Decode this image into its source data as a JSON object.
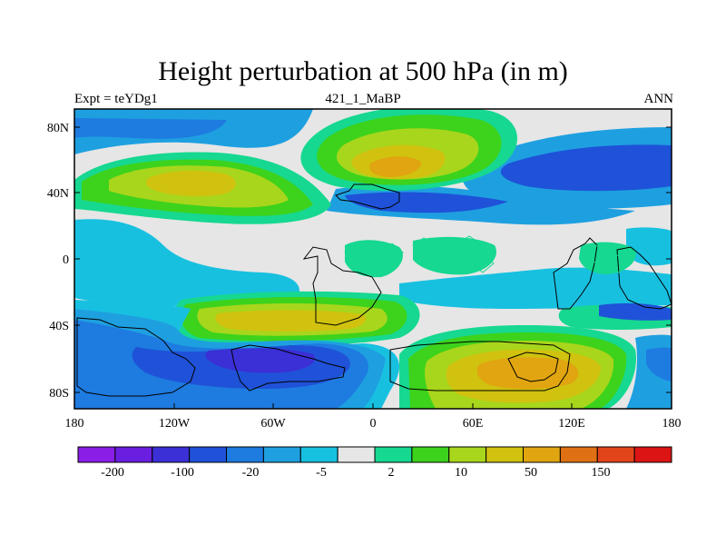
{
  "title": "Height perturbation at 500 hPa (in m)",
  "left_string": "Expt = teYDg1",
  "center_string": "421_1_MaBP",
  "right_string": "ANN",
  "chart_data": {
    "type": "heatmap",
    "subtype": "filled contour map",
    "variable": "500 hPa geopotential height perturbation",
    "units": "m",
    "lat_range": [
      -90,
      90
    ],
    "lon_range": [
      -180,
      180
    ],
    "y_ticks": [
      "80N",
      "40N",
      "0",
      "40S",
      "80S"
    ],
    "x_ticks": [
      "180",
      "120W",
      "60W",
      "0",
      "60E",
      "120E",
      "180"
    ],
    "colorbar": {
      "labels": [
        "-200",
        "-100",
        "-20",
        "-5",
        "2",
        "10",
        "50",
        "150"
      ],
      "colors": [
        "#8a1ee6",
        "#6a1fe0",
        "#3b2fd6",
        "#1f52d8",
        "#1e7be0",
        "#1ea0e0",
        "#18c0e0",
        "#e6e6e6",
        "#16d890",
        "#3dd21c",
        "#a8d61c",
        "#d0c20f",
        "#e0a510",
        "#e07014",
        "#e2451a",
        "#dc1414"
      ]
    }
  }
}
